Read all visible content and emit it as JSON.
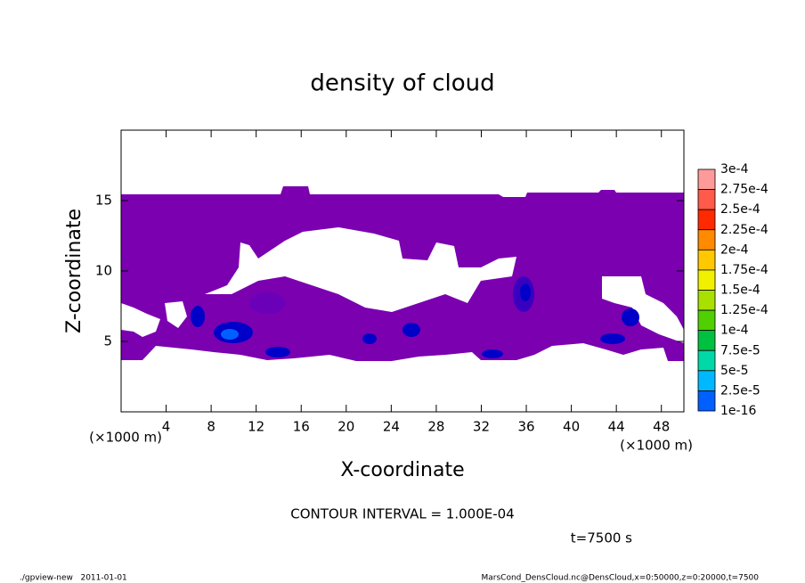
{
  "chart_data": {
    "type": "contour",
    "title": "density of cloud",
    "xlabel": "X-coordinate",
    "ylabel": "Z-coordinate",
    "xunit": "(×1000 m)",
    "yunit": "(×1000 m)",
    "xlim": [
      0,
      50
    ],
    "ylim": [
      0,
      20
    ],
    "xticks": [
      4,
      8,
      12,
      16,
      20,
      24,
      28,
      32,
      36,
      40,
      44,
      48
    ],
    "yticks": [
      5,
      10,
      15
    ],
    "contour_note": "CONTOUR INTERVAL = 1.000E-04",
    "time_label": "t=7500 s",
    "footer_left": "./gpview-new   2011-01-01",
    "footer_right": "MarsCond_DensCloud.nc@DensCloud,x=0:50000,z=0:20000,t=7500",
    "colorbar": {
      "levels": [
        {
          "value": 0.0003,
          "label": "3e-4"
        },
        {
          "value": 0.000275,
          "label": "2.75e-4"
        },
        {
          "value": 0.00025,
          "label": "2.5e-4"
        },
        {
          "value": 0.000225,
          "label": "2.25e-4"
        },
        {
          "value": 0.0002,
          "label": "2e-4"
        },
        {
          "value": 0.000175,
          "label": "1.75e-4"
        },
        {
          "value": 0.00015,
          "label": "1.5e-4"
        },
        {
          "value": 0.000125,
          "label": "1.25e-4"
        },
        {
          "value": 0.0001,
          "label": "1e-4"
        },
        {
          "value": 7.5e-05,
          "label": "7.5e-5"
        },
        {
          "value": 5e-05,
          "label": "5e-5"
        },
        {
          "value": 2.5e-05,
          "label": "2.5e-5"
        },
        {
          "value": 1e-16,
          "label": "1e-16"
        }
      ],
      "colors": [
        "#ff9a9a",
        "#ff5a4a",
        "#ff2a00",
        "#ff8a00",
        "#ffc800",
        "#f0f000",
        "#a8e000",
        "#50d000",
        "#00c040",
        "#00d8a8",
        "#00b8ff",
        "#0060ff",
        "#0000c8"
      ],
      "base_color": "#7a00b0"
    }
  }
}
